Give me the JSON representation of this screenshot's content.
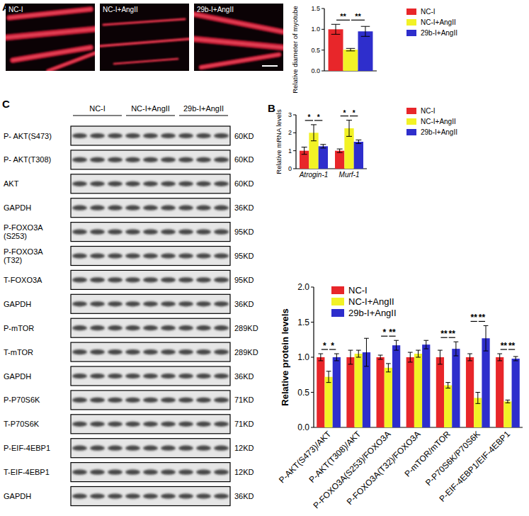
{
  "chart_data": [
    {
      "type": "bar",
      "y_label": "Relative diameter of myotube",
      "categories": [
        null
      ],
      "series": [
        {
          "name": "NC-I",
          "color": "#e8262a",
          "values": [
            1.0
          ],
          "errors": [
            0.12
          ]
        },
        {
          "name": "NC-I+AngII",
          "color": "#f2f226",
          "values": [
            0.51
          ],
          "errors": [
            0.03
          ]
        },
        {
          "name": "29b-I+AngII",
          "color": "#2e2ecc",
          "values": [
            0.95
          ],
          "errors": [
            0.12
          ]
        }
      ],
      "ylim": [
        0,
        1.5
      ],
      "yticks": [
        {
          "value": 0,
          "label": "0.0"
        },
        0.5,
        {
          "value": 1,
          "label": "1.0"
        },
        1.5
      ],
      "legend": "right",
      "significance": [
        {
          "category": 0,
          "from": 0,
          "to": 1,
          "label": "**"
        },
        {
          "category": 0,
          "from": 1,
          "to": 2,
          "label": "**"
        }
      ]
    },
    {
      "type": "bar",
      "y_label": "Relative mRNA levels",
      "categories": [
        "Atrogin-1",
        "Murf-1"
      ],
      "series": [
        {
          "name": "NC-I",
          "color": "#e8262a",
          "values": [
            1.0,
            1.0
          ],
          "errors": [
            0.2,
            0.1
          ]
        },
        {
          "name": "NC-I+AngII",
          "color": "#f2f226",
          "values": [
            2.0,
            2.25
          ],
          "errors": [
            0.45,
            0.45
          ]
        },
        {
          "name": "29b-I+AngII",
          "color": "#2e2ecc",
          "values": [
            1.25,
            1.5
          ],
          "errors": [
            0.1,
            0.1
          ]
        }
      ],
      "ylim": [
        0,
        3
      ],
      "yticks": [
        0,
        1,
        2,
        3
      ],
      "legend": "right",
      "significance": [
        {
          "category": 0,
          "from": 0,
          "to": 1,
          "label": "*"
        },
        {
          "category": 0,
          "from": 1,
          "to": 2,
          "label": "*"
        },
        {
          "category": 1,
          "from": 0,
          "to": 1,
          "label": "*"
        },
        {
          "category": 1,
          "from": 1,
          "to": 2,
          "label": "*"
        }
      ]
    },
    {
      "type": "bar",
      "y_label": "Relative protein levels",
      "categories": [
        "P-AKT(S473)/AKT",
        "P-AKT(T308)/AKT",
        "P-FOXO3A(S253)/FOXO3A",
        "P-FOXO3A(T32)/FOXO3A",
        "P-mTOR/mTOR",
        "P-P70S6K/P70S6K",
        "P-EIF-4EBP1/EIF-4EBP1"
      ],
      "series": [
        {
          "name": "NC-I",
          "color": "#e8262a",
          "values": [
            1.0,
            1.0,
            1.0,
            1.0,
            1.0,
            1.0,
            1.0
          ],
          "errors": [
            0.05,
            0.1,
            0.03,
            0.07,
            0.1,
            0.05,
            0.05
          ]
        },
        {
          "name": "NC-I+AngII",
          "color": "#f2f226",
          "values": [
            0.72,
            1.05,
            0.85,
            1.05,
            0.6,
            0.42,
            0.37
          ],
          "errors": [
            0.08,
            0.05,
            0.06,
            0.05,
            0.04,
            0.08,
            0.02
          ]
        },
        {
          "name": "29b-I+AngII",
          "color": "#2e2ecc",
          "values": [
            1.0,
            1.07,
            1.17,
            1.18,
            1.12,
            1.27,
            0.98
          ],
          "errors": [
            0.05,
            0.2,
            0.07,
            0.06,
            0.1,
            0.18,
            0.03
          ]
        }
      ],
      "ylim": [
        0,
        2
      ],
      "yticks": [
        {
          "value": 0,
          "label": "0.0"
        },
        0.5,
        {
          "value": 1,
          "label": "1.0"
        },
        1.5,
        {
          "value": 2,
          "label": "2.0"
        }
      ],
      "legend": "top",
      "significance": [
        {
          "category": 0,
          "from": 0,
          "to": 1,
          "label": "*"
        },
        {
          "category": 0,
          "from": 1,
          "to": 2,
          "label": "*"
        },
        {
          "category": 2,
          "from": 0,
          "to": 1,
          "label": "*"
        },
        {
          "category": 2,
          "from": 1,
          "to": 2,
          "label": "**"
        },
        {
          "category": 4,
          "from": 0,
          "to": 1,
          "label": "**"
        },
        {
          "category": 4,
          "from": 1,
          "to": 2,
          "label": "**"
        },
        {
          "category": 5,
          "from": 0,
          "to": 1,
          "label": "**"
        },
        {
          "category": 5,
          "from": 1,
          "to": 2,
          "label": "**"
        },
        {
          "category": 6,
          "from": 0,
          "to": 1,
          "label": "**"
        },
        {
          "category": 6,
          "from": 1,
          "to": 2,
          "label": "**"
        }
      ]
    }
  ],
  "figure": {
    "panel_labels": [
      "A",
      "B",
      "C"
    ],
    "images": [
      {
        "label": "NC-I"
      },
      {
        "label": "NC-I+AngII"
      },
      {
        "label": "29b-I+AngII"
      }
    ],
    "blot": {
      "groups": [
        "NC-I",
        "NC-I+AngII",
        "29b-I+AngII"
      ],
      "rows": [
        {
          "label": [
            "P- AKT(S473)"
          ],
          "size": "60KD"
        },
        {
          "label": [
            "P- AKT(T308)"
          ],
          "size": "60KD"
        },
        {
          "label": [
            "AKT"
          ],
          "size": "60KD"
        },
        {
          "label": [
            "GAPDH"
          ],
          "size": "36KD"
        },
        {
          "label": [
            "P-FOXO3A",
            "(S253)"
          ],
          "size": "95KD"
        },
        {
          "label": [
            "P-FOXO3A",
            "(T32)"
          ],
          "size": "95KD"
        },
        {
          "label": [
            "T-FOXO3A"
          ],
          "size": "95KD"
        },
        {
          "label": [
            "GAPDH"
          ],
          "size": "36KD"
        },
        {
          "label": [
            "P-mTOR"
          ],
          "size": "289KD"
        },
        {
          "label": [
            "T-mTOR"
          ],
          "size": "289KD"
        },
        {
          "label": [
            "GAPDH"
          ],
          "size": "36KD"
        },
        {
          "label": [
            "P-P70S6K"
          ],
          "size": "71KD"
        },
        {
          "label": [
            "T-P70S6K"
          ],
          "size": "71KD"
        },
        {
          "label": [
            "P-EIF-4EBP1"
          ],
          "size": "12KD"
        },
        {
          "label": [
            "T-EIF-4EBP1"
          ],
          "size": "12KD"
        },
        {
          "label": [
            "GAPDH"
          ],
          "size": "36KD"
        }
      ]
    }
  }
}
